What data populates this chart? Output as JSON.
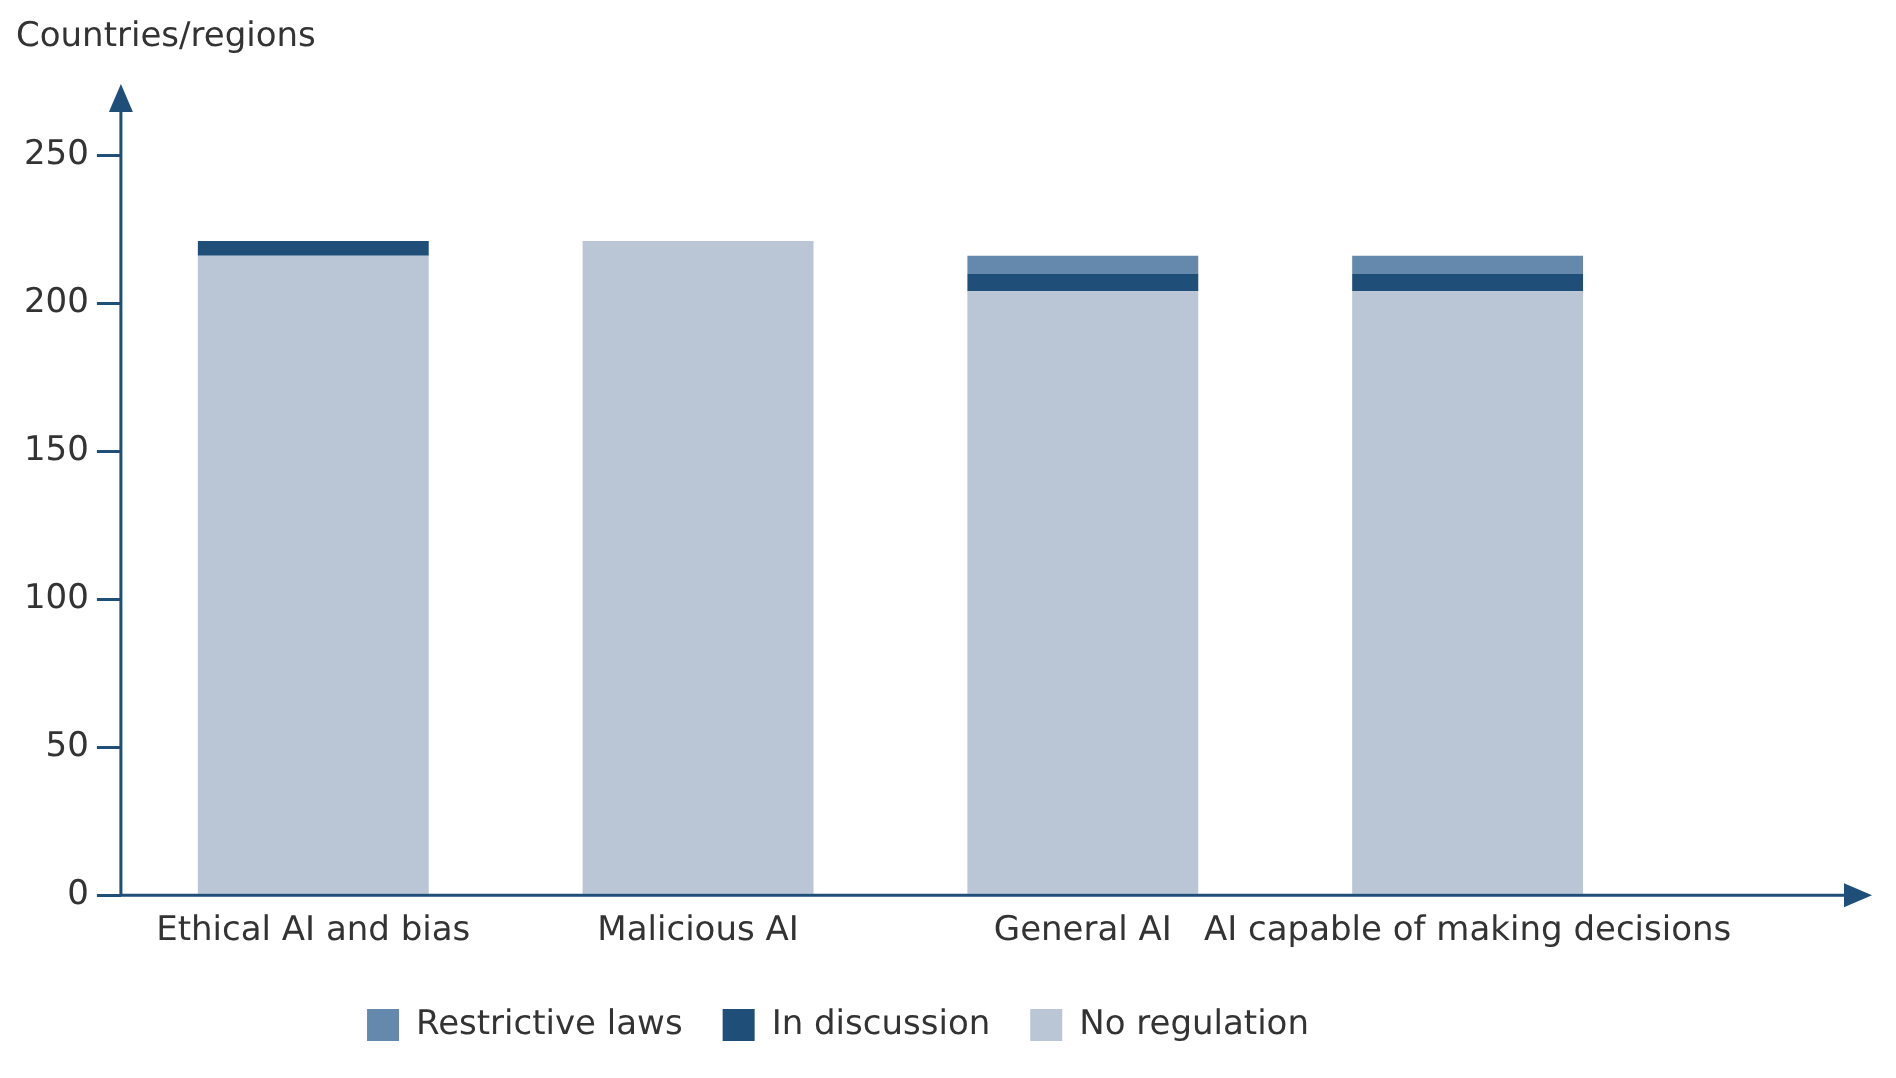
{
  "chart_data": {
    "type": "bar",
    "stacked": true,
    "ylabel": "Countries/regions",
    "categories": [
      "Ethical AI and bias",
      "Malicious AI",
      "General AI",
      "AI capable of making decisions"
    ],
    "series": [
      {
        "name": "No regulation",
        "color": "#bac5d5",
        "values": [
          216,
          221,
          204,
          204
        ]
      },
      {
        "name": "In discussion",
        "color": "#1f4e79",
        "values": [
          5,
          0,
          6,
          6
        ]
      },
      {
        "name": "Restrictive laws",
        "color": "#6589ad",
        "values": [
          0,
          0,
          6,
          6
        ]
      }
    ],
    "ylim": [
      0,
      270
    ],
    "yticks": [
      0,
      50,
      100,
      150,
      200,
      250
    ],
    "grid": false,
    "legend": "bottom"
  }
}
